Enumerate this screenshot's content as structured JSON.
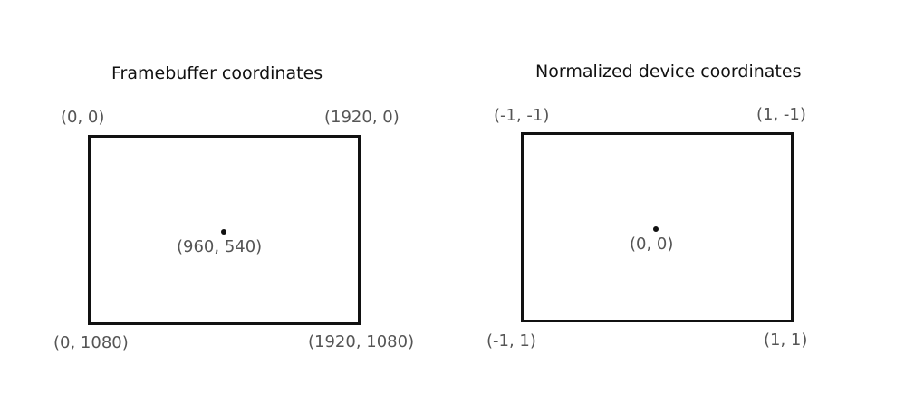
{
  "framebuffer": {
    "title": "Framebuffer coordinates",
    "top_left": "(0, 0)",
    "top_right": "(1920, 0)",
    "center": "(960, 540)",
    "bottom_left": "(0, 1080)",
    "bottom_right": "(1920, 1080)"
  },
  "ndc": {
    "title": "Normalized device coordinates",
    "top_left": "(-1, -1)",
    "top_right": "(1, -1)",
    "center": "(0, 0)",
    "bottom_left": "(-1, 1)",
    "bottom_right": "(1, 1)"
  }
}
